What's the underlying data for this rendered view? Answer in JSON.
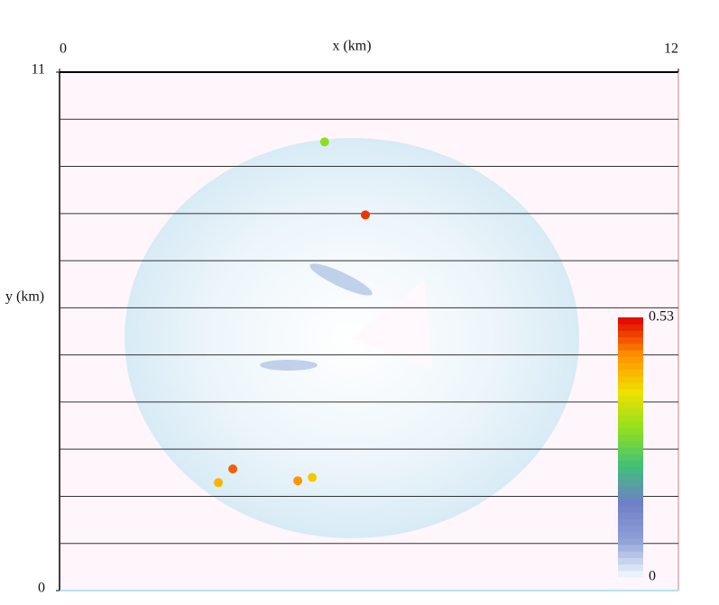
{
  "chart_data": {
    "type": "heatmap",
    "xlabel": "x (km)",
    "ylabel": "y (km)",
    "xlim": [
      0,
      12
    ],
    "xticks": [
      0,
      12
    ],
    "ylim": [
      0,
      11
    ],
    "yticks": [
      0,
      11
    ],
    "ygrid": [
      1,
      2,
      3,
      4,
      5,
      6,
      7,
      8,
      9,
      10
    ],
    "x": [
      5.93,
      3.36,
      4.62,
      3.08,
      5.14,
      4.9
    ],
    "y": [
      7.97,
      2.58,
      2.33,
      2.29,
      9.52,
      2.4
    ],
    "values": [
      0.5,
      0.48,
      0.45,
      0.42,
      0.3,
      0.4
    ],
    "colorbar": {
      "lim": [
        0,
        0.53
      ],
      "ticks": [
        0,
        0.53
      ],
      "colormap": [
        "#f4fbfd",
        "#8fa0d8",
        "#6f7fc8",
        "#3fc07a",
        "#8fe020",
        "#f0e000",
        "#ff9000",
        "#e00000"
      ]
    }
  }
}
